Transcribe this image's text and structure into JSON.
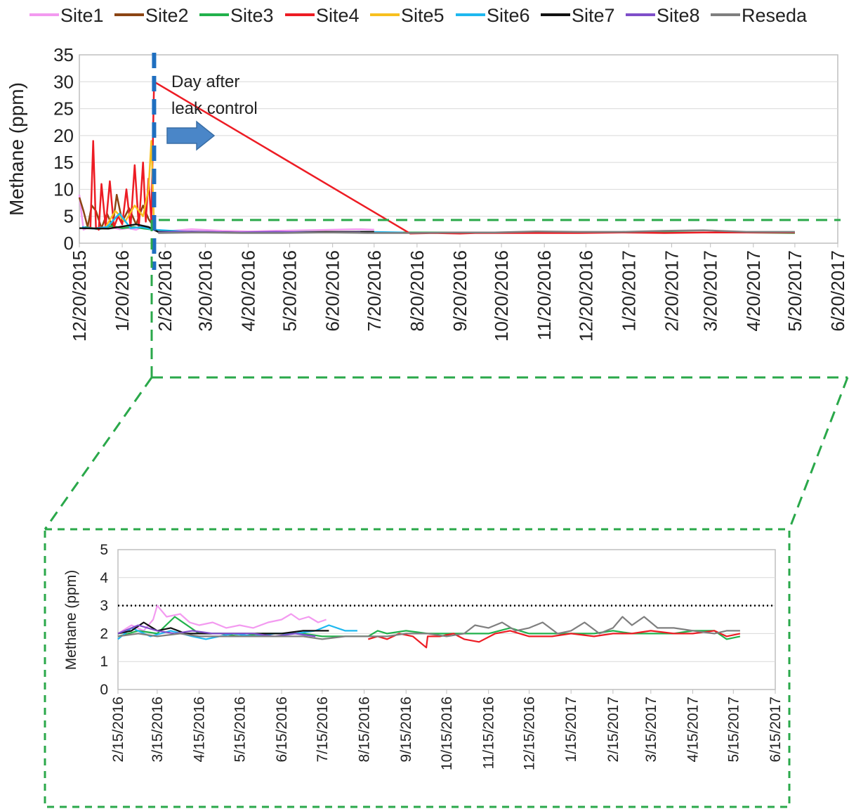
{
  "series_names": [
    "Site1",
    "Site2",
    "Site3",
    "Site4",
    "Site5",
    "Site6",
    "Site7",
    "Site8",
    "Reseda"
  ],
  "colors": {
    "Site1": "#f39af0",
    "Site2": "#8b4513",
    "Site3": "#22b14c",
    "Site4": "#ed1c24",
    "Site5": "#f7c01f",
    "Site6": "#1fb8ef",
    "Site7": "#111111",
    "Site8": "#7f4fc9",
    "Reseda": "#7f7f7f",
    "zoom_frame": "#2aa84a",
    "leak_line": "#1f6fc0",
    "arrow": "#4a86c8",
    "threshold": "#000000"
  },
  "annotation": {
    "line1": "Day after",
    "line2": "leak control"
  },
  "chart_data": [
    {
      "type": "line",
      "panel": "full_period",
      "ylabel": "Methane (ppm)",
      "xlabel": "",
      "ylim": [
        0,
        35
      ],
      "yticks": [
        "0",
        "5",
        "10",
        "15",
        "20",
        "25",
        "30",
        "35"
      ],
      "xlim": [
        "12/20/2015",
        "6/20/2017"
      ],
      "xticks": [
        "12/20/2015",
        "1/20/2016",
        "2/20/2016",
        "3/20/2016",
        "4/20/2016",
        "5/20/2016",
        "6/20/2016",
        "7/20/2016",
        "8/20/2016",
        "9/20/2016",
        "10/20/2016",
        "11/20/2016",
        "12/20/2016",
        "1/20/2017",
        "2/20/2017",
        "3/20/2017",
        "4/20/2017",
        "5/20/2017",
        "6/20/2017"
      ],
      "grid": "horizontal",
      "legend": "top",
      "leak_control_date": "2/12/2016",
      "series": [
        {
          "name": "Site1",
          "x": [
            "12/20/2015",
            "12/23/2015",
            "12/27/2015",
            "1/1/2016",
            "1/6/2016",
            "1/12/2016",
            "1/18/2016",
            "1/24/2016",
            "1/30/2016",
            "2/5/2016",
            "2/11/2016",
            "2/20/2016",
            "3/10/2016",
            "4/1/2016",
            "4/20/2016",
            "5/10/2016",
            "6/1/2016",
            "6/20/2016",
            "7/10/2016",
            "7/20/2016"
          ],
          "values": [
            9,
            2.5,
            3,
            2.6,
            2.8,
            3,
            2.6,
            2.8,
            2.5,
            3.2,
            2.5,
            2.2,
            2.6,
            2.3,
            2.2,
            2.3,
            2.4,
            2.5,
            2.6,
            2.5
          ]
        },
        {
          "name": "Site2",
          "x": [
            "12/20/2015",
            "12/23/2015",
            "12/26/2015",
            "12/29/2015",
            "1/1/2016",
            "1/5/2016",
            "1/9/2016",
            "1/13/2016",
            "1/16/2016",
            "1/20/2016",
            "1/25/2016",
            "1/30/2016",
            "2/4/2016",
            "2/8/2016",
            "2/12/2016"
          ],
          "values": [
            8.5,
            6,
            3,
            7,
            6,
            2.8,
            5.5,
            3,
            9,
            4,
            6.5,
            3.5,
            7,
            4.5,
            3
          ]
        },
        {
          "name": "Site3",
          "x": [
            "12/24/2015",
            "1/3/2016",
            "1/12/2016",
            "1/20/2016",
            "1/28/2016",
            "2/5/2016",
            "2/12/2016",
            "3/1/2016",
            "4/1/2016",
            "5/1/2016",
            "6/1/2016",
            "7/1/2016",
            "8/18/2016",
            "9/15/2016",
            "10/15/2016",
            "11/15/2016",
            "12/15/2016",
            "1/15/2017",
            "2/15/2017",
            "3/15/2017",
            "4/15/2017",
            "5/20/2017"
          ],
          "values": [
            3,
            2.6,
            3.2,
            2.8,
            3,
            2.7,
            2.5,
            2.1,
            2,
            2,
            2.1,
            2,
            2,
            2,
            2,
            2,
            2,
            2,
            2,
            2,
            2,
            1.9
          ]
        },
        {
          "name": "Site4",
          "x": [
            "12/28/2015",
            "12/30/2015",
            "1/1/2016",
            "1/3/2016",
            "1/5/2016",
            "1/8/2016",
            "1/11/2016",
            "1/14/2016",
            "1/17/2016",
            "1/20/2016",
            "1/23/2016",
            "1/26/2016",
            "1/29/2016",
            "2/1/2016",
            "2/4/2016",
            "2/6/2016",
            "2/8/2016",
            "2/10/2016",
            "2/12/2016",
            "8/15/2016",
            "9/1/2016",
            "9/20/2016",
            "10/1/2016",
            "10/20/2016",
            "11/15/2016",
            "12/15/2016",
            "1/15/2017",
            "2/15/2017",
            "3/15/2017",
            "4/15/2017",
            "5/20/2017"
          ],
          "values": [
            3,
            19,
            3,
            2.5,
            11,
            3,
            11.5,
            3,
            5,
            3.5,
            10,
            3,
            14.5,
            3,
            15,
            4,
            12,
            4,
            30,
            1.8,
            1.9,
            1.8,
            1.9,
            1.9,
            1.9,
            1.9,
            2,
            1.9,
            2,
            2,
            2
          ]
        },
        {
          "name": "Site5",
          "x": [
            "1/8/2016",
            "1/15/2016",
            "1/22/2016",
            "1/29/2016",
            "2/4/2016",
            "2/8/2016",
            "2/10/2016",
            "2/12/2016"
          ],
          "values": [
            3,
            6,
            4,
            7,
            5,
            10,
            19,
            3
          ]
        },
        {
          "name": "Site6",
          "x": [
            "12/22/2015",
            "12/30/2015",
            "1/9/2016",
            "1/18/2016",
            "1/26/2016",
            "2/3/2016",
            "2/12/2016",
            "3/15/2016",
            "4/15/2016",
            "5/15/2016",
            "6/15/2016",
            "7/15/2016",
            "8/10/2016"
          ],
          "values": [
            3,
            2.7,
            3,
            5.5,
            2.8,
            3,
            2.5,
            2,
            2,
            2,
            2,
            2.1,
            2
          ]
        },
        {
          "name": "Site7",
          "x": [
            "12/20/2015",
            "1/10/2016",
            "1/30/2016",
            "2/8/2016",
            "2/15/2016",
            "3/15/2016",
            "4/15/2016",
            "5/15/2016",
            "6/15/2016",
            "7/20/2016"
          ],
          "values": [
            2.8,
            2.7,
            3.5,
            3,
            2.1,
            2.1,
            2,
            2,
            2.1,
            2.1
          ]
        },
        {
          "name": "Site8",
          "x": [
            "2/15/2016",
            "3/10/2016",
            "4/10/2016",
            "5/10/2016",
            "6/10/2016",
            "7/10/2016"
          ],
          "values": [
            2,
            2.2,
            2,
            2.1,
            2,
            2
          ]
        },
        {
          "name": "Reseda",
          "x": [
            "2/15/2016",
            "3/15/2016",
            "4/15/2016",
            "5/15/2016",
            "6/15/2016",
            "7/15/2016",
            "8/15/2016",
            "9/15/2016",
            "10/15/2016",
            "11/15/2016",
            "12/15/2016",
            "1/15/2017",
            "2/15/2017",
            "3/15/2017",
            "4/15/2017",
            "5/20/2017"
          ],
          "values": [
            1.9,
            2,
            1.9,
            1.9,
            2,
            1.9,
            1.9,
            2,
            2,
            2.2,
            2.1,
            2.1,
            2.3,
            2.4,
            2.1,
            2.1
          ]
        }
      ]
    },
    {
      "type": "line",
      "panel": "zoom_after_leak_control",
      "ylabel": "Methane (ppm)",
      "xlabel": "",
      "ylim": [
        0,
        5
      ],
      "yticks": [
        "0",
        "1",
        "2",
        "3",
        "4",
        "5"
      ],
      "xlim": [
        "2/15/2016",
        "6/15/2017"
      ],
      "xticks": [
        "2/15/2016",
        "3/15/2016",
        "4/15/2016",
        "5/15/2016",
        "6/15/2016",
        "7/15/2016",
        "8/15/2016",
        "9/15/2016",
        "10/15/2016",
        "11/15/2016",
        "12/15/2016",
        "1/15/2017",
        "2/15/2017",
        "3/15/2017",
        "4/15/2017",
        "5/15/2017",
        "6/15/2017"
      ],
      "grid": "horizontal",
      "reference_line_y": 3,
      "series": [
        {
          "name": "Site1",
          "x": [
            "2/15/2016",
            "2/25/2016",
            "3/5/2016",
            "3/12/2016",
            "3/15/2016",
            "3/22/2016",
            "4/1/2016",
            "4/8/2016",
            "4/15/2016",
            "4/25/2016",
            "5/5/2016",
            "5/15/2016",
            "5/25/2016",
            "6/5/2016",
            "6/15/2016",
            "6/22/2016",
            "6/28/2016",
            "7/5/2016",
            "7/12/2016",
            "7/18/2016"
          ],
          "values": [
            2,
            2.3,
            2.1,
            2.5,
            3,
            2.6,
            2.7,
            2.4,
            2.3,
            2.4,
            2.2,
            2.3,
            2.2,
            2.4,
            2.5,
            2.7,
            2.5,
            2.6,
            2.4,
            2.5
          ]
        },
        {
          "name": "Site3",
          "x": [
            "2/15/2016",
            "3/1/2016",
            "3/15/2016",
            "3/28/2016",
            "4/15/2016",
            "5/1/2016",
            "5/15/2016",
            "6/1/2016",
            "6/15/2016",
            "7/1/2016",
            "7/15/2016",
            "8/18/2016",
            "8/25/2016",
            "9/1/2016",
            "9/15/2016",
            "10/1/2016",
            "10/15/2016",
            "10/28/2016",
            "11/15/2016",
            "12/1/2016",
            "12/15/2016",
            "1/1/2017",
            "1/15/2017",
            "2/1/2017",
            "2/15/2017",
            "3/1/2017",
            "3/15/2017",
            "4/1/2017",
            "4/15/2017",
            "5/1/2017",
            "5/10/2017",
            "5/20/2017"
          ],
          "values": [
            1.9,
            2.1,
            2,
            2.6,
            2,
            2,
            1.9,
            2,
            2,
            2,
            1.9,
            1.9,
            2.1,
            2,
            2.1,
            2,
            2,
            2,
            2,
            2.2,
            2,
            2,
            2,
            2,
            2.1,
            2,
            2,
            2,
            2.1,
            2.1,
            1.8,
            1.9
          ]
        },
        {
          "name": "Site4",
          "x": [
            "8/18/2016",
            "8/25/2016",
            "9/1/2016",
            "9/10/2016",
            "9/20/2016",
            "9/30/2016",
            "10/1/2016",
            "10/10/2016",
            "10/20/2016",
            "10/28/2016",
            "11/8/2016",
            "11/20/2016",
            "12/1/2016",
            "12/15/2016",
            "1/1/2017",
            "1/15/2017",
            "2/1/2017",
            "2/15/2017",
            "3/1/2017",
            "3/15/2017",
            "4/1/2017",
            "4/15/2017",
            "5/1/2017",
            "5/10/2017",
            "5/20/2017"
          ],
          "values": [
            1.8,
            1.9,
            1.8,
            2,
            1.9,
            1.5,
            1.9,
            1.9,
            2,
            1.8,
            1.7,
            2,
            2.1,
            1.9,
            1.9,
            2,
            1.9,
            2,
            2,
            2.1,
            2,
            2,
            2.1,
            1.9,
            2
          ]
        },
        {
          "name": "Site6",
          "x": [
            "2/15/2016",
            "2/25/2016",
            "3/10/2016",
            "3/25/2016",
            "4/10/2016",
            "4/20/2016",
            "5/10/2016",
            "5/25/2016",
            "6/10/2016",
            "6/25/2016",
            "7/10/2016",
            "7/20/2016",
            "8/1/2016",
            "8/10/2016"
          ],
          "values": [
            1.8,
            2.2,
            1.9,
            2.1,
            1.9,
            1.8,
            2,
            1.9,
            2,
            2,
            2.1,
            2.3,
            2.1,
            2.1
          ]
        },
        {
          "name": "Site7",
          "x": [
            "2/15/2016",
            "2/25/2016",
            "3/5/2016",
            "3/15/2016",
            "3/25/2016",
            "4/5/2016",
            "4/15/2016",
            "5/1/2016",
            "5/15/2016",
            "6/1/2016",
            "6/15/2016",
            "7/1/2016",
            "7/15/2016",
            "7/20/2016"
          ],
          "values": [
            2,
            2.1,
            2.4,
            2.1,
            2.2,
            2,
            2,
            2,
            2,
            2,
            2,
            2.1,
            2.1,
            2.1
          ]
        },
        {
          "name": "Site8",
          "x": [
            "2/15/2016",
            "3/1/2016",
            "3/15/2016",
            "3/28/2016",
            "4/10/2016",
            "4/25/2016",
            "5/10/2016",
            "5/25/2016",
            "6/10/2016",
            "6/25/2016",
            "7/10/2016"
          ],
          "values": [
            2,
            2.3,
            2.1,
            2,
            2.1,
            2,
            2,
            2,
            1.9,
            2,
            1.9
          ]
        },
        {
          "name": "Reseda",
          "x": [
            "2/15/2016",
            "3/1/2016",
            "3/15/2016",
            "4/1/2016",
            "4/15/2016",
            "5/1/2016",
            "5/15/2016",
            "6/1/2016",
            "6/15/2016",
            "7/1/2016",
            "7/15/2016",
            "8/1/2016",
            "8/15/2016",
            "9/1/2016",
            "9/15/2016",
            "10/1/2016",
            "10/15/2016",
            "10/28/2016",
            "11/5/2016",
            "11/15/2016",
            "11/25/2016",
            "12/5/2016",
            "12/15/2016",
            "12/25/2016",
            "1/5/2017",
            "1/15/2017",
            "1/25/2017",
            "2/5/2017",
            "2/15/2017",
            "2/22/2017",
            "3/1/2017",
            "3/10/2017",
            "3/20/2017",
            "4/1/2017",
            "4/15/2017",
            "5/1/2017",
            "5/10/2017",
            "5/20/2017"
          ],
          "values": [
            1.9,
            2,
            1.9,
            2,
            1.9,
            1.9,
            1.9,
            1.9,
            1.9,
            1.9,
            1.8,
            1.9,
            1.9,
            1.9,
            2,
            2,
            1.9,
            2,
            2.3,
            2.2,
            2.4,
            2.1,
            2.2,
            2.4,
            2,
            2.1,
            2.4,
            2,
            2.2,
            2.6,
            2.3,
            2.6,
            2.2,
            2.2,
            2.1,
            2,
            2.1,
            2.1
          ]
        }
      ]
    }
  ]
}
